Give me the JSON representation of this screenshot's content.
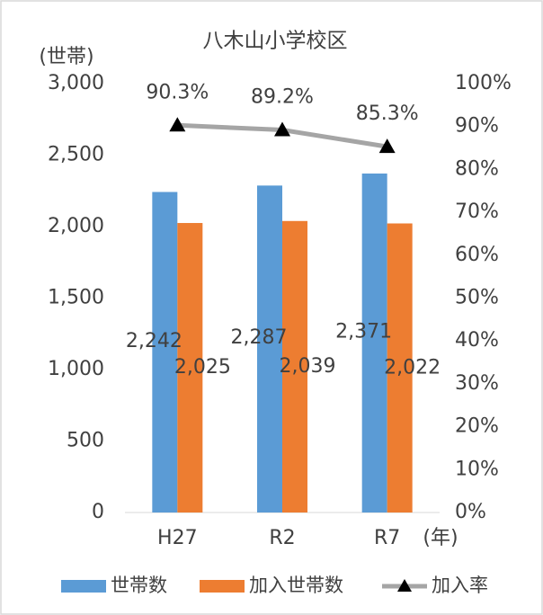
{
  "chart_data": {
    "type": "bar",
    "title": "八木山小学校区",
    "y_label": "(世帯)",
    "x_label": "(年)",
    "categories": [
      "H27",
      "R2",
      "R7"
    ],
    "series": [
      {
        "name": "世帯数",
        "color": "#5b9bd5",
        "values": [
          2242,
          2287,
          2371
        ],
        "value_labels": [
          "2,242",
          "2,287",
          "2,371"
        ]
      },
      {
        "name": "加入世帯数",
        "color": "#ed7d31",
        "values": [
          2025,
          2039,
          2022
        ],
        "value_labels": [
          "2,025",
          "2,039",
          "2,022"
        ]
      },
      {
        "name": "加入率",
        "color": "#a5a5a5",
        "marker_color": "#000000",
        "type": "line",
        "axis": "y2",
        "values": [
          90.3,
          89.2,
          85.3
        ],
        "value_labels": [
          "90.3%",
          "89.2%",
          "85.3%"
        ]
      }
    ],
    "ylim": [
      0,
      3000
    ],
    "yticks": [
      0,
      500,
      {
        "value": 1000,
        "label": "1,000"
      },
      {
        "value": 1500,
        "label": "1,500"
      },
      {
        "value": 2000,
        "label": "2,000"
      },
      {
        "value": 2500,
        "label": "2,500"
      },
      {
        "value": 3000,
        "label": "3,000"
      }
    ],
    "y2lim": [
      0,
      100
    ],
    "y2ticks": [
      {
        "value": 0,
        "label": "0%"
      },
      {
        "value": 10,
        "label": "10%"
      },
      {
        "value": 20,
        "label": "20%"
      },
      {
        "value": 30,
        "label": "30%"
      },
      {
        "value": 40,
        "label": "40%"
      },
      {
        "value": 50,
        "label": "50%"
      },
      {
        "value": 60,
        "label": "60%"
      },
      {
        "value": 70,
        "label": "70%"
      },
      {
        "value": 80,
        "label": "80%"
      },
      {
        "value": 90,
        "label": "90%"
      },
      {
        "value": 100,
        "label": "100%"
      }
    ],
    "grid": false,
    "legend": "bottom"
  }
}
